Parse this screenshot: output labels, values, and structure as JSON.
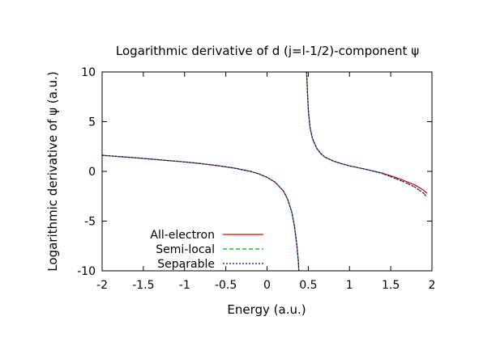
{
  "chart_data": {
    "type": "line",
    "title": "Logarithmic derivative of d (j=l-1/2)-component ψ",
    "xlabel": "Energy (a.u.)",
    "ylabel": "Logarithmic derivative of ψ (a.u.)",
    "xlim": [
      -2,
      2
    ],
    "ylim": [
      -10,
      10
    ],
    "xticks": [
      "-2",
      "-1.5",
      "-1",
      "-0.5",
      "0",
      "0.5",
      "1",
      "1.5",
      "2"
    ],
    "yticks": [
      "-10",
      "-5",
      "0",
      "5",
      "10"
    ],
    "grid": false,
    "legend_position": "bottom-left",
    "series": [
      {
        "name": "All-electron",
        "color": "#e00000",
        "dash": "solid",
        "segments": [
          [
            [
              -2.0,
              1.62
            ],
            [
              -1.8,
              1.5
            ],
            [
              -1.6,
              1.37
            ],
            [
              -1.4,
              1.23
            ],
            [
              -1.2,
              1.09
            ],
            [
              -1.0,
              0.95
            ],
            [
              -0.8,
              0.78
            ],
            [
              -0.6,
              0.58
            ],
            [
              -0.4,
              0.33
            ],
            [
              -0.2,
              0.0
            ],
            [
              -0.1,
              -0.25
            ],
            [
              0.0,
              -0.6
            ],
            [
              0.1,
              -1.1
            ],
            [
              0.2,
              -2.0
            ],
            [
              0.25,
              -2.8
            ],
            [
              0.3,
              -4.1
            ],
            [
              0.33,
              -5.4
            ],
            [
              0.36,
              -7.3
            ],
            [
              0.38,
              -9.1
            ],
            [
              0.385,
              -10.0
            ]
          ],
          [
            [
              0.48,
              10.0
            ],
            [
              0.49,
              8.0
            ],
            [
              0.5,
              6.2
            ],
            [
              0.52,
              4.5
            ],
            [
              0.55,
              3.3
            ],
            [
              0.6,
              2.35
            ],
            [
              0.65,
              1.8
            ],
            [
              0.7,
              1.45
            ],
            [
              0.8,
              1.05
            ],
            [
              0.9,
              0.78
            ],
            [
              1.0,
              0.55
            ],
            [
              1.1,
              0.38
            ],
            [
              1.2,
              0.2
            ],
            [
              1.3,
              0.02
            ],
            [
              1.4,
              -0.18
            ],
            [
              1.5,
              -0.45
            ],
            [
              1.6,
              -0.72
            ],
            [
              1.7,
              -1.05
            ],
            [
              1.8,
              -1.4
            ],
            [
              1.9,
              -1.9
            ],
            [
              1.94,
              -2.2
            ]
          ]
        ]
      },
      {
        "name": "Semi-local",
        "color": "#00b000",
        "dash": "dash",
        "segments": [
          [
            [
              -2.0,
              1.62
            ],
            [
              -1.8,
              1.5
            ],
            [
              -1.6,
              1.37
            ],
            [
              -1.4,
              1.23
            ],
            [
              -1.2,
              1.09
            ],
            [
              -1.0,
              0.95
            ],
            [
              -0.8,
              0.78
            ],
            [
              -0.6,
              0.58
            ],
            [
              -0.4,
              0.33
            ],
            [
              -0.2,
              0.0
            ],
            [
              -0.1,
              -0.25
            ],
            [
              0.0,
              -0.6
            ],
            [
              0.1,
              -1.1
            ],
            [
              0.2,
              -2.0
            ],
            [
              0.25,
              -2.8
            ],
            [
              0.3,
              -4.1
            ],
            [
              0.33,
              -5.4
            ],
            [
              0.36,
              -7.3
            ],
            [
              0.38,
              -9.1
            ],
            [
              0.385,
              -10.0
            ]
          ],
          [
            [
              0.48,
              10.0
            ],
            [
              0.49,
              8.0
            ],
            [
              0.5,
              6.2
            ],
            [
              0.52,
              4.5
            ],
            [
              0.55,
              3.3
            ],
            [
              0.6,
              2.35
            ],
            [
              0.65,
              1.8
            ],
            [
              0.7,
              1.45
            ],
            [
              0.8,
              1.05
            ],
            [
              0.9,
              0.78
            ],
            [
              1.0,
              0.55
            ],
            [
              1.1,
              0.38
            ],
            [
              1.2,
              0.2
            ],
            [
              1.3,
              0.0
            ],
            [
              1.4,
              -0.22
            ],
            [
              1.5,
              -0.52
            ],
            [
              1.6,
              -0.85
            ],
            [
              1.7,
              -1.2
            ],
            [
              1.8,
              -1.62
            ],
            [
              1.9,
              -2.2
            ],
            [
              1.94,
              -2.6
            ]
          ]
        ]
      },
      {
        "name": "Separable",
        "color": "#0000c0",
        "dash": "dot",
        "segments": [
          [
            [
              -2.0,
              1.62
            ],
            [
              -1.8,
              1.5
            ],
            [
              -1.6,
              1.37
            ],
            [
              -1.4,
              1.23
            ],
            [
              -1.2,
              1.09
            ],
            [
              -1.0,
              0.95
            ],
            [
              -0.8,
              0.78
            ],
            [
              -0.6,
              0.58
            ],
            [
              -0.4,
              0.33
            ],
            [
              -0.2,
              0.0
            ],
            [
              -0.1,
              -0.25
            ],
            [
              0.0,
              -0.6
            ],
            [
              0.1,
              -1.1
            ],
            [
              0.2,
              -2.0
            ],
            [
              0.25,
              -2.8
            ],
            [
              0.3,
              -4.1
            ],
            [
              0.33,
              -5.4
            ],
            [
              0.36,
              -7.3
            ],
            [
              0.38,
              -9.1
            ],
            [
              0.385,
              -10.0
            ]
          ],
          [
            [
              0.48,
              10.0
            ],
            [
              0.49,
              8.0
            ],
            [
              0.5,
              6.2
            ],
            [
              0.52,
              4.5
            ],
            [
              0.55,
              3.3
            ],
            [
              0.6,
              2.35
            ],
            [
              0.65,
              1.8
            ],
            [
              0.7,
              1.45
            ],
            [
              0.8,
              1.05
            ],
            [
              0.9,
              0.78
            ],
            [
              1.0,
              0.55
            ],
            [
              1.1,
              0.38
            ],
            [
              1.2,
              0.2
            ],
            [
              1.3,
              0.0
            ],
            [
              1.4,
              -0.22
            ],
            [
              1.5,
              -0.52
            ],
            [
              1.6,
              -0.85
            ],
            [
              1.7,
              -1.2
            ],
            [
              1.8,
              -1.62
            ],
            [
              1.9,
              -2.2
            ],
            [
              1.94,
              -2.6
            ]
          ]
        ]
      }
    ]
  }
}
